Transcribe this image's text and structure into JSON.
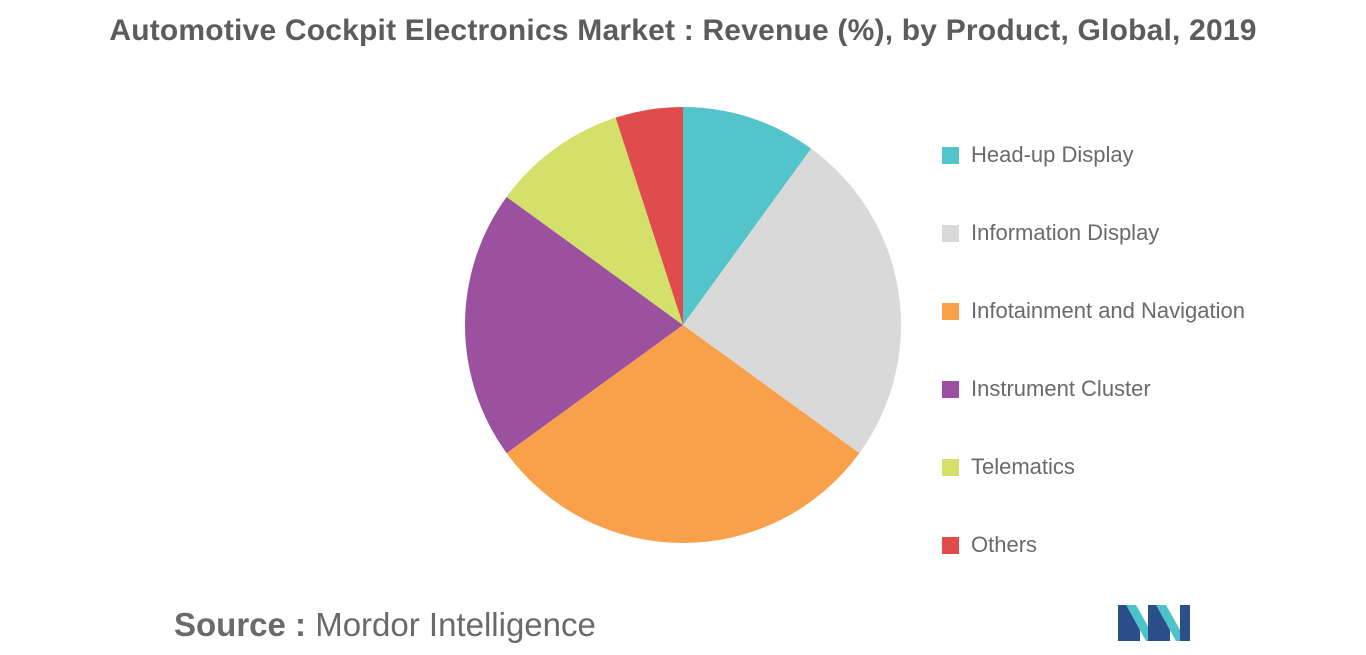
{
  "title": "Automotive Cockpit Electronics Market : Revenue (%), by Product, Global, 2019",
  "source": {
    "prefix": "Source :",
    "name": "Mordor Intelligence"
  },
  "chart_data": {
    "type": "pie",
    "title": "Automotive Cockpit Electronics Market : Revenue (%), by Product, Global, 2019",
    "legend_position": "right",
    "slices": [
      {
        "label": "Head-up Display",
        "value": 10,
        "color": "#52c4ca"
      },
      {
        "label": "Information Display",
        "value": 25,
        "color": "#d9d9d9"
      },
      {
        "label": "Infotainment and Navigation",
        "value": 30,
        "color": "#f9a04a"
      },
      {
        "label": "Instrument Cluster",
        "value": 20,
        "color": "#9b50a0"
      },
      {
        "label": "Telematics",
        "value": 10,
        "color": "#d3e16a"
      },
      {
        "label": "Others",
        "value": 5,
        "color": "#e04b4b"
      }
    ]
  },
  "logo": {
    "icon": "mordor-intelligence-logo",
    "colors": [
      "#2a4f8a",
      "#4dc3c9"
    ]
  }
}
